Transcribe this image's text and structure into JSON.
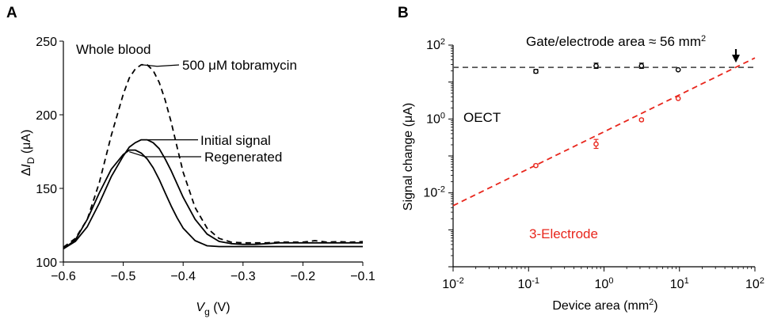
{
  "chart_data": [
    {
      "panel_label": "A",
      "type": "line",
      "xlabel": "V_g (V)",
      "xlabel_main": "V",
      "xlabel_sub": "g",
      "xlabel_unit": " (V)",
      "ylabel": "ΔI_D (μA)",
      "ylabel_delta": "Δ",
      "ylabel_main": "I",
      "ylabel_sub": "D",
      "ylabel_unit": " (μA)",
      "xlim": [
        -0.6,
        -0.1
      ],
      "ylim": [
        100,
        250
      ],
      "xticks": [
        -0.6,
        -0.5,
        -0.4,
        -0.3,
        -0.2,
        -0.1
      ],
      "xtick_labels": [
        "−0.6",
        "−0.5",
        "−0.4",
        "−0.3",
        "−0.2",
        "−0.1"
      ],
      "yticks": [
        100,
        150,
        200,
        250
      ],
      "ytick_labels": [
        "100",
        "150",
        "200",
        "250"
      ],
      "annotation": "Whole blood",
      "series": [
        {
          "name": "500 μM tobramycin",
          "style": "dashed",
          "x": [
            -0.6,
            -0.58,
            -0.56,
            -0.54,
            -0.52,
            -0.5,
            -0.49,
            -0.48,
            -0.47,
            -0.46,
            -0.45,
            -0.44,
            -0.43,
            -0.42,
            -0.41,
            -0.4,
            -0.38,
            -0.36,
            -0.34,
            -0.32,
            -0.3,
            -0.28,
            -0.26,
            -0.24,
            -0.22,
            -0.2,
            -0.18,
            -0.16,
            -0.14,
            -0.12,
            -0.1
          ],
          "y": [
            110,
            116,
            129,
            154,
            186,
            214,
            225,
            231,
            234,
            234,
            230,
            222,
            210,
            195,
            178,
            161,
            137,
            123,
            116,
            113.5,
            113,
            113,
            113,
            113.5,
            113.5,
            113.5,
            114.5,
            113.5,
            113.8,
            113.5,
            113.8
          ]
        },
        {
          "name": "Initial signal",
          "style": "solid",
          "x": [
            -0.6,
            -0.58,
            -0.56,
            -0.54,
            -0.52,
            -0.5,
            -0.49,
            -0.48,
            -0.47,
            -0.46,
            -0.45,
            -0.44,
            -0.43,
            -0.42,
            -0.41,
            -0.4,
            -0.38,
            -0.36,
            -0.34,
            -0.32,
            -0.3,
            -0.28,
            -0.26,
            -0.24,
            -0.22,
            -0.2,
            -0.18,
            -0.16,
            -0.14,
            -0.12,
            -0.1
          ],
          "y": [
            109,
            114,
            124,
            140,
            158,
            172,
            178,
            181,
            183,
            183,
            181,
            177,
            170,
            162,
            153,
            144,
            129,
            119,
            114,
            112.5,
            112,
            112,
            112.5,
            113,
            113,
            113,
            113,
            113,
            113,
            113,
            113
          ]
        },
        {
          "name": "Regenerated",
          "style": "solid",
          "x": [
            -0.6,
            -0.58,
            -0.56,
            -0.54,
            -0.52,
            -0.5,
            -0.49,
            -0.48,
            -0.47,
            -0.46,
            -0.45,
            -0.44,
            -0.43,
            -0.42,
            -0.41,
            -0.4,
            -0.38,
            -0.36,
            -0.34,
            -0.32,
            -0.3,
            -0.28,
            -0.26,
            -0.24,
            -0.22,
            -0.2,
            -0.18,
            -0.16,
            -0.14,
            -0.12,
            -0.1
          ],
          "y": [
            109,
            115,
            129,
            147,
            163,
            173,
            176,
            176,
            174,
            170,
            164,
            156,
            147,
            138,
            130,
            123,
            114.5,
            111,
            110.5,
            110.5,
            110.5,
            110.5,
            110.5,
            110.5,
            110.5,
            110.5,
            110.5,
            110.5,
            110.5,
            110.5,
            110.5
          ]
        }
      ]
    },
    {
      "panel_label": "B",
      "type": "scatter",
      "xscale": "log",
      "yscale": "log",
      "xlabel": "Device area (mm²)",
      "xlabel_text": "Device area (mm",
      "xlabel_sup": "2",
      "xlabel_close": ")",
      "ylabel": "Signal change (μA)",
      "xlim": [
        0.01,
        100
      ],
      "ylim": [
        0.0001,
        100
      ],
      "xticks": [
        0.01,
        0.1,
        1,
        10,
        100
      ],
      "xtick_base": "10",
      "xtick_exps": [
        "-2",
        "-1",
        "0",
        "1",
        "2"
      ],
      "yticks": [
        0.01,
        1,
        100
      ],
      "ytick_base": "10",
      "ytick_exps": [
        "-2",
        "0",
        "2"
      ],
      "annotation": "Gate/electrode area ≈ 56 mm",
      "annotation_sup": "2",
      "annotation_x": 56,
      "series": [
        {
          "name": "OECT",
          "color": "#000000",
          "fit_line": "horizontal dashed",
          "fit_y": 25,
          "points": [
            {
              "x": 0.125,
              "y": 19.5,
              "err_low": 17.5,
              "err_high": 22.0
            },
            {
              "x": 0.785,
              "y": 27.5,
              "err_low": 23.5,
              "err_high": 32.5
            },
            {
              "x": 3.14,
              "y": 27.5,
              "err_low": 23.5,
              "err_high": 32.5
            },
            {
              "x": 9.62,
              "y": 21.5,
              "err_low": 21.0,
              "err_high": 22.0
            }
          ]
        },
        {
          "name": "3-Electrode",
          "color": "#e8261c",
          "fit_line": "dashed, slope 1 on log-log",
          "fit": [
            [
              0.01,
              0.0045
            ],
            [
              100,
              45
            ]
          ],
          "points": [
            {
              "x": 0.125,
              "y": 0.055,
              "err_low": 0.051,
              "err_high": 0.06
            },
            {
              "x": 0.785,
              "y": 0.21,
              "err_low": 0.16,
              "err_high": 0.28
            },
            {
              "x": 3.14,
              "y": 0.95,
              "err_low": 0.88,
              "err_high": 1.02
            },
            {
              "x": 9.62,
              "y": 3.6,
              "err_low": 3.5,
              "err_high": 3.7
            }
          ]
        }
      ]
    }
  ]
}
